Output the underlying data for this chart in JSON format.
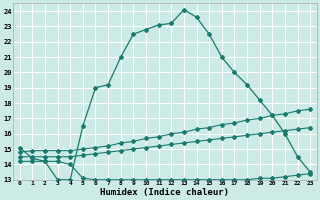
{
  "xlabel": "Humidex (Indice chaleur)",
  "xlim": [
    -0.5,
    23.5
  ],
  "ylim": [
    13,
    24.5
  ],
  "yticks": [
    13,
    14,
    15,
    16,
    17,
    18,
    19,
    20,
    21,
    22,
    23,
    24
  ],
  "xticks": [
    0,
    1,
    2,
    3,
    4,
    5,
    6,
    7,
    8,
    9,
    10,
    11,
    12,
    13,
    14,
    15,
    16,
    17,
    18,
    19,
    20,
    21,
    22,
    23
  ],
  "background_color": "#cceae6",
  "grid_color": "#ffffff",
  "line_color": "#1a7a6e",
  "line1_x": [
    0,
    1,
    2,
    3,
    4,
    5,
    6,
    7,
    8,
    9,
    10,
    11,
    12,
    13,
    14,
    15,
    16,
    17,
    18,
    19,
    20,
    21,
    22,
    23
  ],
  "line1_y": [
    15.1,
    14.4,
    14.2,
    13.0,
    13.0,
    16.5,
    19.0,
    19.2,
    21.0,
    22.5,
    22.8,
    23.1,
    23.2,
    24.1,
    23.6,
    22.5,
    21.0,
    20.0,
    19.2,
    18.2,
    17.2,
    16.0,
    14.5,
    13.5
  ],
  "line2_x": [
    0,
    1,
    2,
    3,
    4,
    5,
    6,
    7,
    8,
    9,
    10,
    11,
    12,
    13,
    14,
    15,
    16,
    17,
    18,
    19,
    20,
    21,
    22,
    23
  ],
  "line2_y": [
    14.8,
    14.9,
    14.9,
    14.9,
    14.9,
    15.0,
    15.1,
    15.2,
    15.4,
    15.5,
    15.7,
    15.8,
    16.0,
    16.1,
    16.3,
    16.4,
    16.6,
    16.7,
    16.9,
    17.0,
    17.2,
    17.3,
    17.5,
    17.6
  ],
  "line3_x": [
    0,
    1,
    2,
    3,
    4,
    5,
    6,
    7,
    8,
    9,
    10,
    11,
    12,
    13,
    14,
    15,
    16,
    17,
    18,
    19,
    20,
    21,
    22,
    23
  ],
  "line3_y": [
    14.5,
    14.5,
    14.5,
    14.5,
    14.5,
    14.6,
    14.7,
    14.8,
    14.9,
    15.0,
    15.1,
    15.2,
    15.3,
    15.4,
    15.5,
    15.6,
    15.7,
    15.8,
    15.9,
    16.0,
    16.1,
    16.2,
    16.3,
    16.4
  ],
  "line4_x": [
    0,
    1,
    2,
    3,
    4,
    5,
    6,
    7,
    8,
    9,
    10,
    11,
    12,
    13,
    14,
    15,
    16,
    17,
    18,
    19,
    20,
    21,
    22,
    23
  ],
  "line4_y": [
    14.2,
    14.2,
    14.2,
    14.2,
    14.0,
    13.1,
    13.0,
    13.0,
    13.0,
    13.0,
    13.0,
    13.0,
    13.0,
    13.0,
    13.0,
    13.0,
    13.0,
    13.0,
    13.0,
    13.1,
    13.1,
    13.2,
    13.3,
    13.4
  ]
}
